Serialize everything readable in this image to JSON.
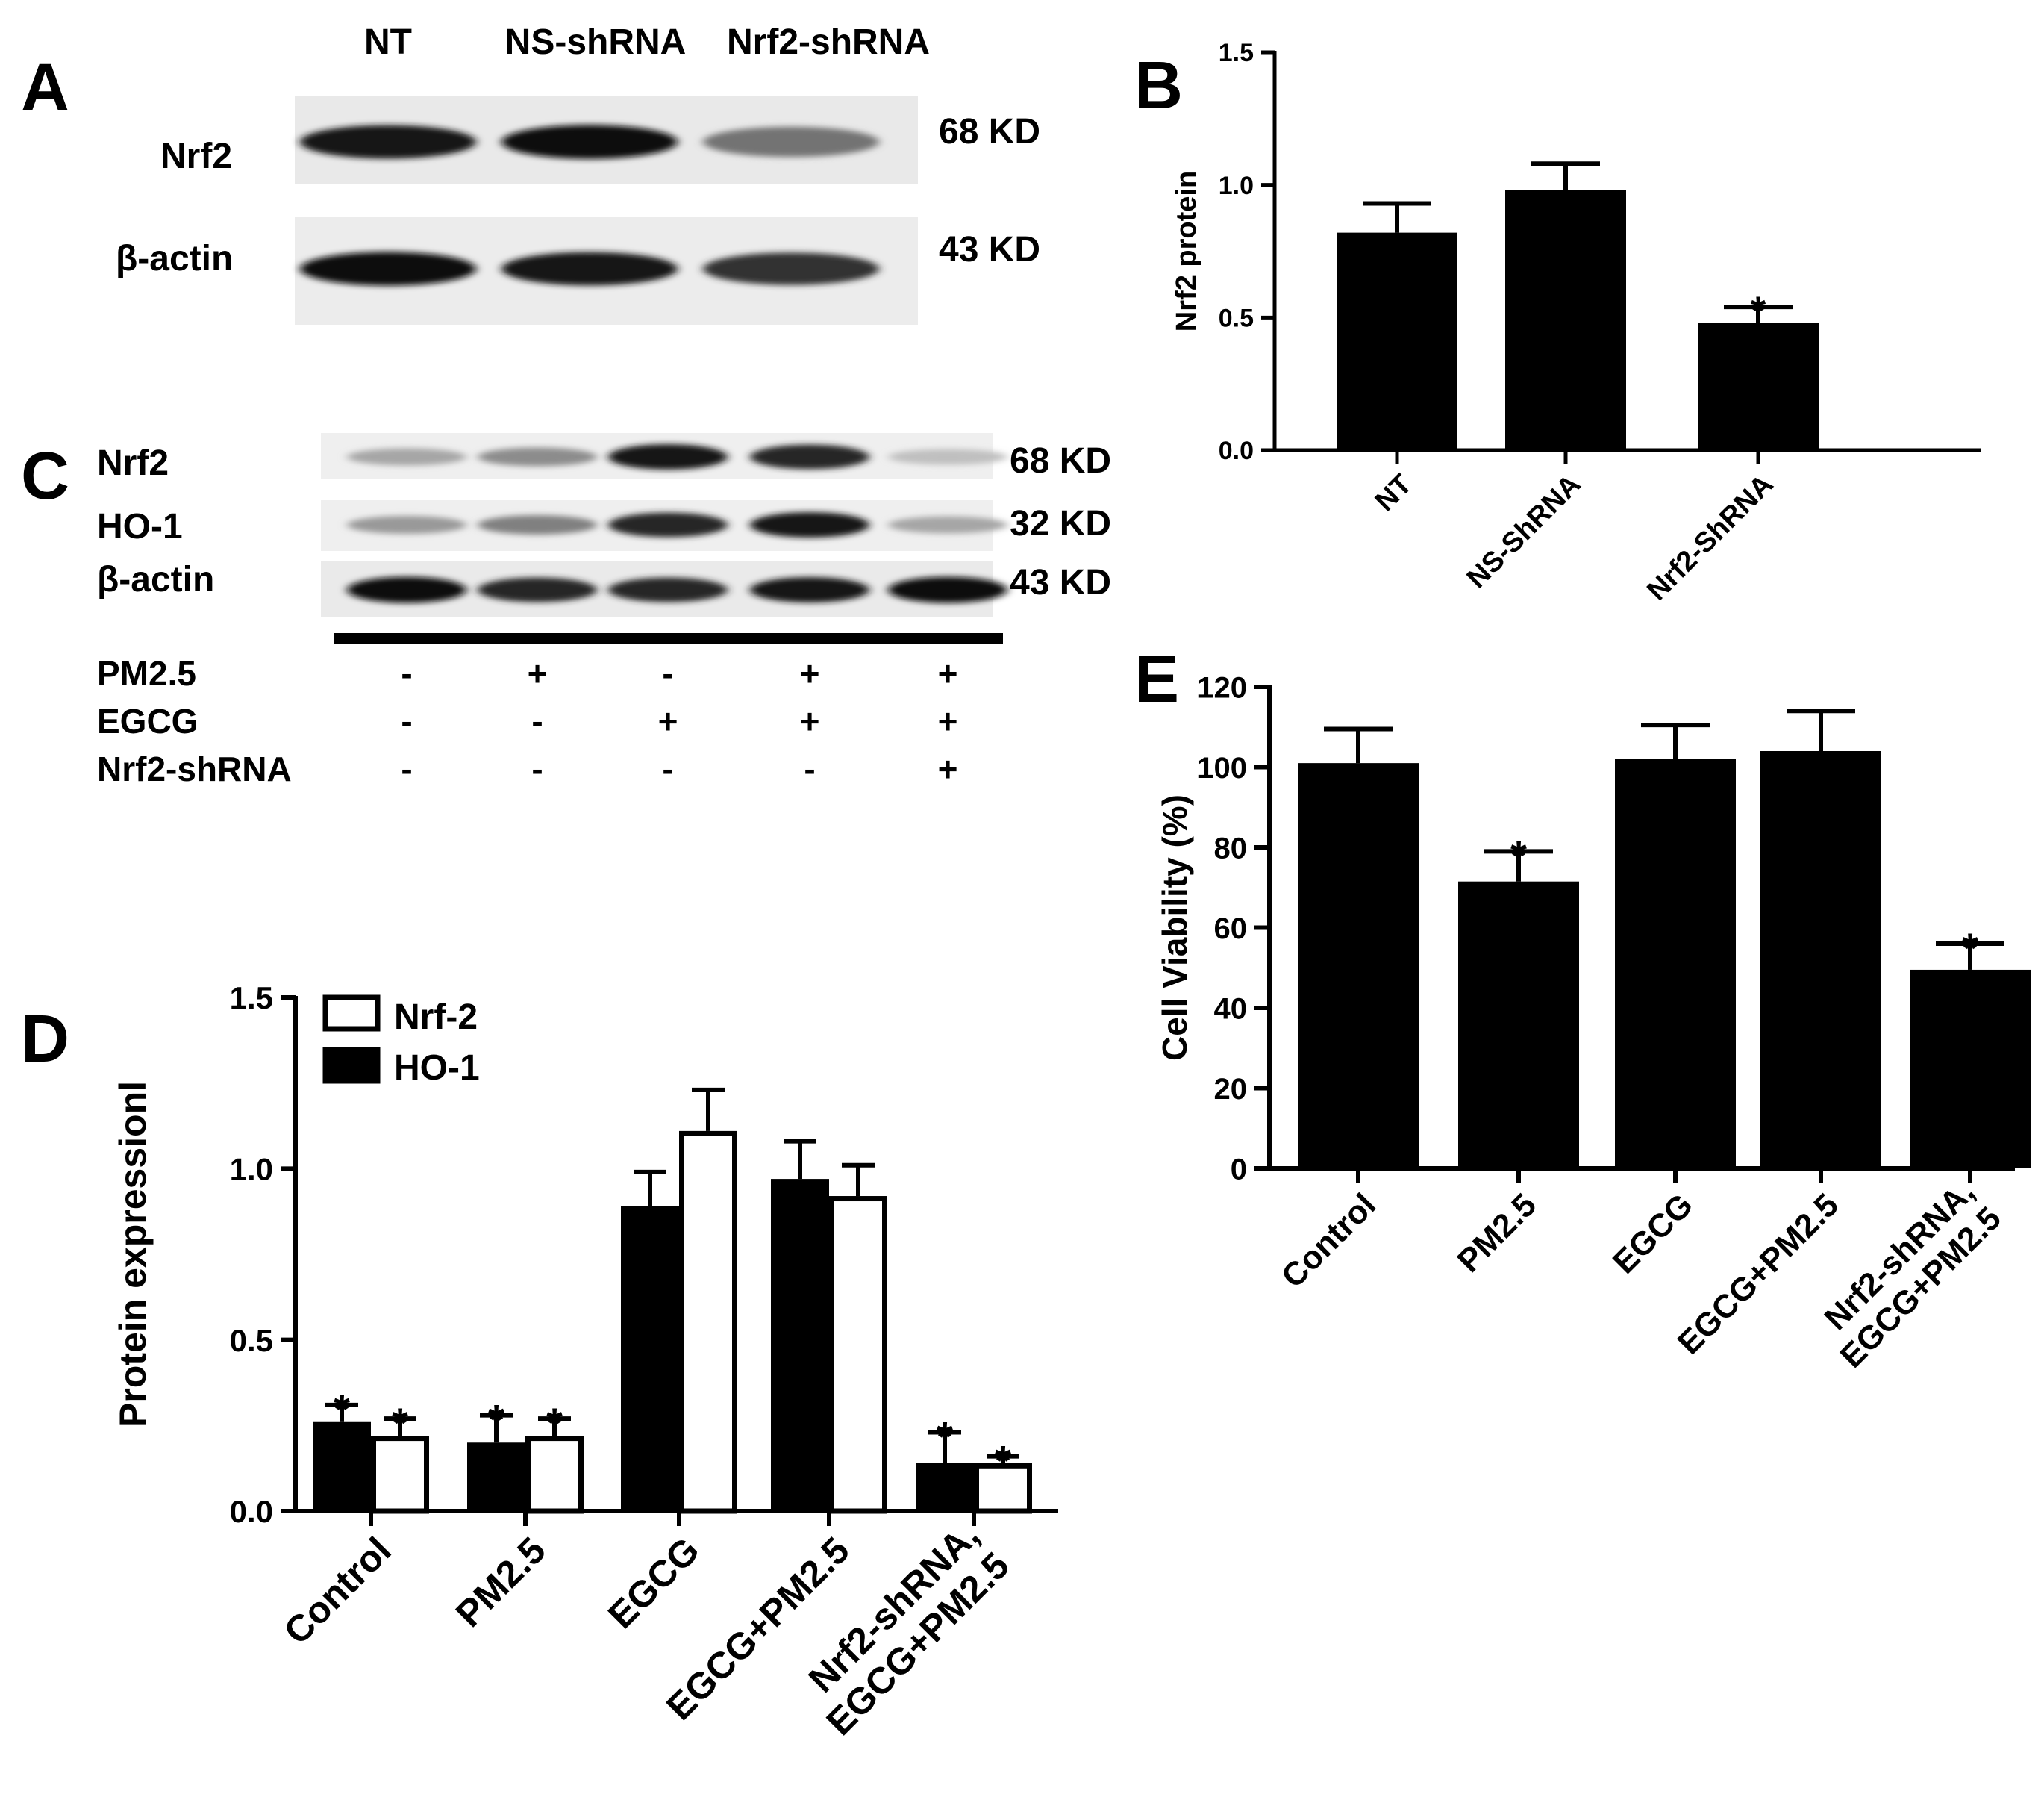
{
  "panels": {
    "a": {
      "letter": "A",
      "lanes": [
        "NT",
        "NS-shRNA",
        "Nrf2-shRNA"
      ],
      "rows": [
        {
          "name": "Nrf2",
          "kd": "68 KD",
          "intensity": [
            0.9,
            0.95,
            0.55
          ]
        },
        {
          "name": "β-actin",
          "kd": "43 KD",
          "intensity": [
            0.95,
            0.9,
            0.8
          ]
        }
      ]
    },
    "c": {
      "letter": "C",
      "rows": [
        {
          "name": "Nrf2",
          "kd": "68 KD",
          "intensity": [
            0.35,
            0.45,
            0.9,
            0.85,
            0.25
          ]
        },
        {
          "name": "HO-1",
          "kd": "32 KD",
          "intensity": [
            0.4,
            0.5,
            0.85,
            0.9,
            0.35
          ]
        },
        {
          "name": "β-actin",
          "kd": "43 KD",
          "intensity": [
            0.95,
            0.85,
            0.85,
            0.9,
            0.95
          ]
        }
      ],
      "treatments": [
        {
          "name": "PM2.5",
          "signs": [
            "-",
            "+",
            "-",
            "+",
            "+"
          ]
        },
        {
          "name": "EGCG",
          "signs": [
            "-",
            "-",
            "+",
            "+",
            "+"
          ]
        },
        {
          "name": "Nrf2-shRNA",
          "signs": [
            "-",
            "-",
            "-",
            "-",
            "+"
          ]
        }
      ]
    },
    "b": {
      "letter": "B"
    },
    "d": {
      "letter": "D"
    },
    "e": {
      "letter": "E"
    }
  },
  "chart_data": [
    {
      "id": "B",
      "type": "bar",
      "ylabel": "Nrf2  protein",
      "ylim": [
        0,
        1.5
      ],
      "yticks": [
        "0.0",
        "0.5",
        "1.0",
        "1.5"
      ],
      "categories": [
        "NT",
        "NS-ShRNA",
        "Nrf2-ShRNA"
      ],
      "values": [
        0.82,
        0.98,
        0.48
      ],
      "errors": [
        0.11,
        0.1,
        0.06
      ],
      "stars": [
        "",
        "",
        "*"
      ],
      "color": "#000000"
    },
    {
      "id": "D",
      "type": "bar",
      "ylabel": "Protein expressionl",
      "ylim": [
        0,
        1.5
      ],
      "yticks": [
        "0.0",
        "0.5",
        "1.0",
        "1.5"
      ],
      "categories": [
        "Control",
        "PM2.5",
        "EGCG",
        "EGCG+PM2.5",
        [
          "Nrf2-shRNA,",
          "EGCG+PM2.5"
        ]
      ],
      "series": [
        {
          "name": "HO-1",
          "fill": "#000000",
          "values": [
            0.26,
            0.2,
            0.89,
            0.97,
            0.14
          ],
          "errors": [
            0.05,
            0.08,
            0.1,
            0.11,
            0.09
          ],
          "stars": [
            "*",
            "*",
            "",
            "",
            "*"
          ]
        },
        {
          "name": "Nrf-2",
          "fill": "#ffffff",
          "values": [
            0.22,
            0.22,
            1.11,
            0.92,
            0.14
          ],
          "errors": [
            0.05,
            0.05,
            0.12,
            0.09,
            0.02
          ],
          "stars": [
            "*",
            "*",
            "",
            "",
            "*"
          ]
        }
      ],
      "legend_order": [
        "Nrf-2",
        "HO-1"
      ],
      "legend_position": "top-left"
    },
    {
      "id": "E",
      "type": "bar",
      "ylabel": "Cell Viability (%)",
      "ylim": [
        0,
        120
      ],
      "yticks": [
        "0",
        "20",
        "40",
        "60",
        "80",
        "100",
        "120"
      ],
      "categories": [
        "Control",
        "PM2.5",
        "EGCG",
        "EGCG+PM2.5",
        [
          "Nrf2-shRNA,",
          "EGCG+PM2.5"
        ]
      ],
      "values": [
        101,
        71.5,
        102,
        104,
        49.5
      ],
      "errors": [
        8.5,
        7.5,
        8.5,
        10,
        6.5
      ],
      "stars": [
        "",
        "*",
        "",
        "",
        "*"
      ],
      "color": "#000000"
    }
  ]
}
